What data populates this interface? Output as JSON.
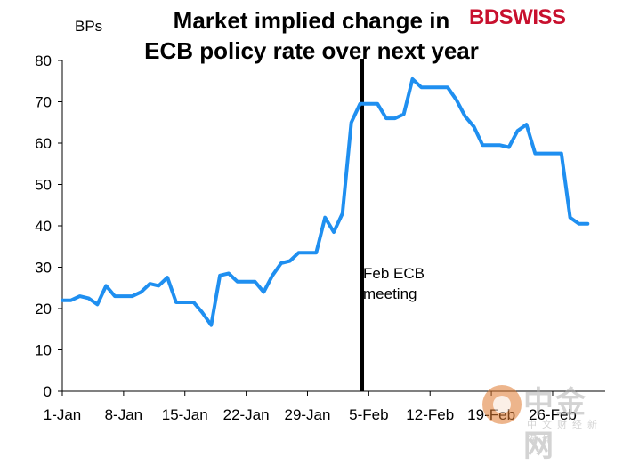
{
  "header": {
    "title_line1": "Market implied change in",
    "title_line2": "ECB policy rate over next year",
    "unit_label": "BPs",
    "brand_bd": "BD",
    "brand_swiss": "SWISS"
  },
  "annotation": {
    "line1": "Feb ECB",
    "line2": "meeting"
  },
  "watermark": {
    "text": "中金网",
    "subtext": "中文财经新媒体"
  },
  "colors": {
    "line": "#1f8ff0",
    "event_line": "#000000",
    "brand": "#c8102e"
  },
  "chart_data": {
    "type": "line",
    "title": "Market implied change in ECB policy rate over next year",
    "ylabel": "BPs",
    "ylim": [
      0,
      80
    ],
    "yticks": [
      0,
      10,
      20,
      30,
      40,
      50,
      60,
      70,
      80
    ],
    "xlim": [
      "2018-01-01",
      "2018-03-04"
    ],
    "xticks": [
      "1-Jan",
      "8-Jan",
      "15-Jan",
      "22-Jan",
      "29-Jan",
      "5-Feb",
      "12-Feb",
      "19-Feb",
      "26-Feb"
    ],
    "grid": false,
    "event_marker": {
      "date": "2018-02-04",
      "label": "Feb ECB meeting"
    },
    "series": [
      {
        "x": [
          "2018-01-01",
          "2018-01-02",
          "2018-01-03",
          "2018-01-04",
          "2018-01-05",
          "2018-01-06",
          "2018-01-07",
          "2018-01-08",
          "2018-01-09",
          "2018-01-10",
          "2018-01-11",
          "2018-01-12",
          "2018-01-13",
          "2018-01-14",
          "2018-01-15",
          "2018-01-16",
          "2018-01-17",
          "2018-01-18",
          "2018-01-19",
          "2018-01-20",
          "2018-01-21",
          "2018-01-22",
          "2018-01-23",
          "2018-01-24",
          "2018-01-25",
          "2018-01-26",
          "2018-01-27",
          "2018-01-28",
          "2018-01-29",
          "2018-01-30",
          "2018-01-31",
          "2018-02-01",
          "2018-02-02",
          "2018-02-03",
          "2018-02-04",
          "2018-02-05",
          "2018-02-06",
          "2018-02-07",
          "2018-02-08",
          "2018-02-09",
          "2018-02-10",
          "2018-02-11",
          "2018-02-12",
          "2018-02-13",
          "2018-02-14",
          "2018-02-15",
          "2018-02-16",
          "2018-02-17",
          "2018-02-18",
          "2018-02-19",
          "2018-02-20",
          "2018-02-21",
          "2018-02-22",
          "2018-02-23",
          "2018-02-24",
          "2018-02-25",
          "2018-02-26",
          "2018-02-27",
          "2018-02-28",
          "2018-03-01",
          "2018-03-02"
        ],
        "values": [
          22,
          22,
          23,
          22.5,
          21,
          25.5,
          23,
          23,
          23,
          24,
          26,
          25.5,
          27.5,
          21.5,
          21.5,
          21.5,
          19,
          16,
          28,
          28.5,
          26.5,
          26.5,
          26.5,
          24,
          28,
          31,
          31.5,
          33.5,
          33.5,
          33.5,
          42,
          38.5,
          43,
          65,
          69.5,
          69.5,
          69.5,
          66,
          66,
          67,
          75.5,
          73.5,
          73.5,
          73.5,
          73.5,
          70.5,
          66.5,
          64,
          59.5,
          59.5,
          59.5,
          59,
          63,
          64.5,
          57.5,
          57.5,
          57.5,
          57.5,
          42,
          40.5,
          40.5
        ]
      }
    ]
  }
}
